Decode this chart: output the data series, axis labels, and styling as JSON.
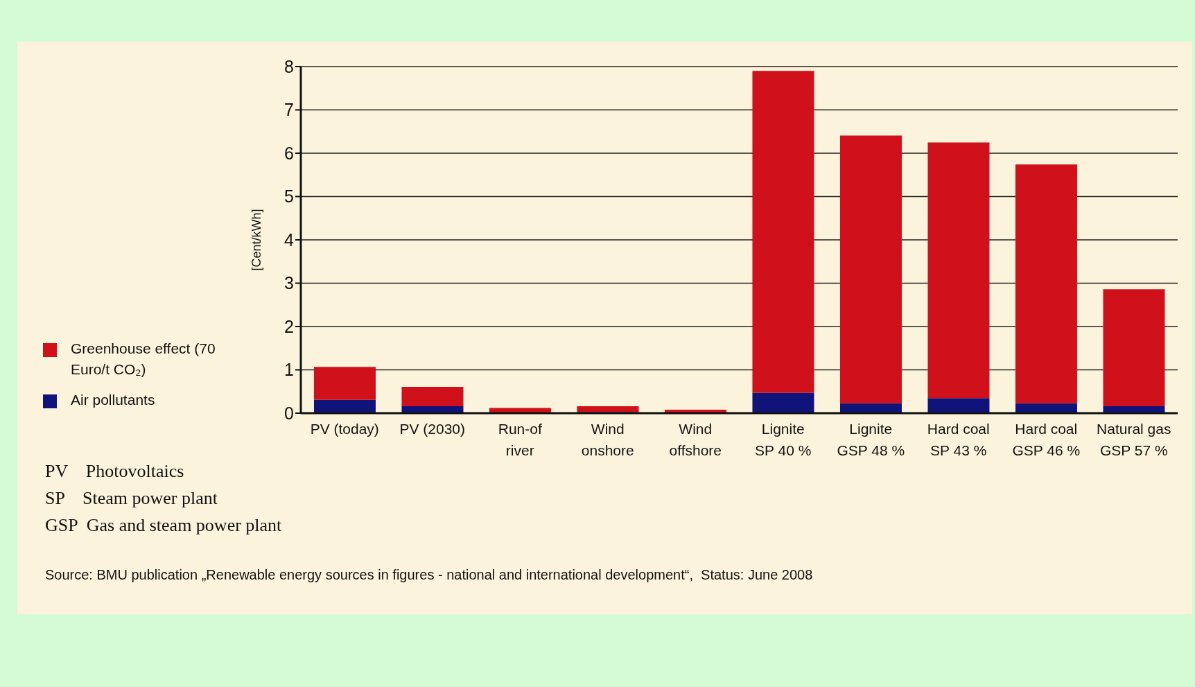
{
  "chart_data": {
    "type": "bar",
    "stacked": true,
    "ylabel": "[Cent/kWh]",
    "categories": [
      "PV (today)",
      "PV (2030)",
      "Run-of\nriver",
      "Wind\nonshore",
      "Wind\noffshore",
      "Lignite\nSP 40 %",
      "Lignite\nGSP 48 %",
      "Hard coal\nSP 43 %",
      "Hard coal\nGSP 46 %",
      "Natural gas\nGSP 57 %"
    ],
    "series": [
      {
        "name": "Air pollutants",
        "color": "#10137a",
        "values": [
          0.31,
          0.16,
          0,
          0.03,
          0,
          0.47,
          0.23,
          0.35,
          0.23,
          0.16
        ]
      },
      {
        "name": "Greenhouse effect (70 Euro/t CO₂)",
        "color": "#d0111b",
        "values": [
          0.76,
          0.45,
          0.12,
          0.13,
          0.08,
          7.43,
          6.18,
          5.9,
          5.51,
          2.7
        ]
      }
    ],
    "ylim": [
      0,
      8
    ],
    "yticks": [
      0,
      1,
      2,
      3,
      4,
      5,
      6,
      7,
      8
    ],
    "grid": "y",
    "legend": "left",
    "annotations": [
      "PV    Photovoltaics",
      "SP    Steam power plant",
      "GSP  Gas and steam power plant",
      "Source: BMU publication „Renewable energy sources in figures - national and international development“,  Status: June 2008"
    ]
  }
}
